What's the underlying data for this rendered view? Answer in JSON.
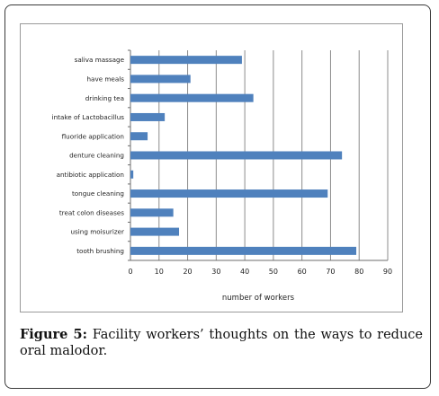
{
  "caption": {
    "figure_label": "Figure 5:",
    "text": "Facility workers’ thoughts on the ways to reduce oral malodor."
  },
  "chart_data": {
    "type": "bar",
    "orientation": "horizontal",
    "categories": [
      "saliva massage",
      "have meals",
      "drinking tea",
      "intake of Lactobacillus",
      "fluoride application",
      "denture cleaning",
      "antibiotic application",
      "tongue cleaning",
      "treat colon diseases",
      "using moisurizer",
      "tooth brushing"
    ],
    "values": [
      39,
      21,
      43,
      12,
      6,
      74,
      1,
      69,
      15,
      17,
      79
    ],
    "xlabel": "number of workers",
    "ylabel": "",
    "xlim": [
      0,
      90
    ],
    "xticks": [
      0,
      10,
      20,
      30,
      40,
      50,
      60,
      70,
      80,
      90
    ],
    "grid": "vertical",
    "bar_color": "#4f81bd",
    "grid_color": "#8c8c8c"
  }
}
